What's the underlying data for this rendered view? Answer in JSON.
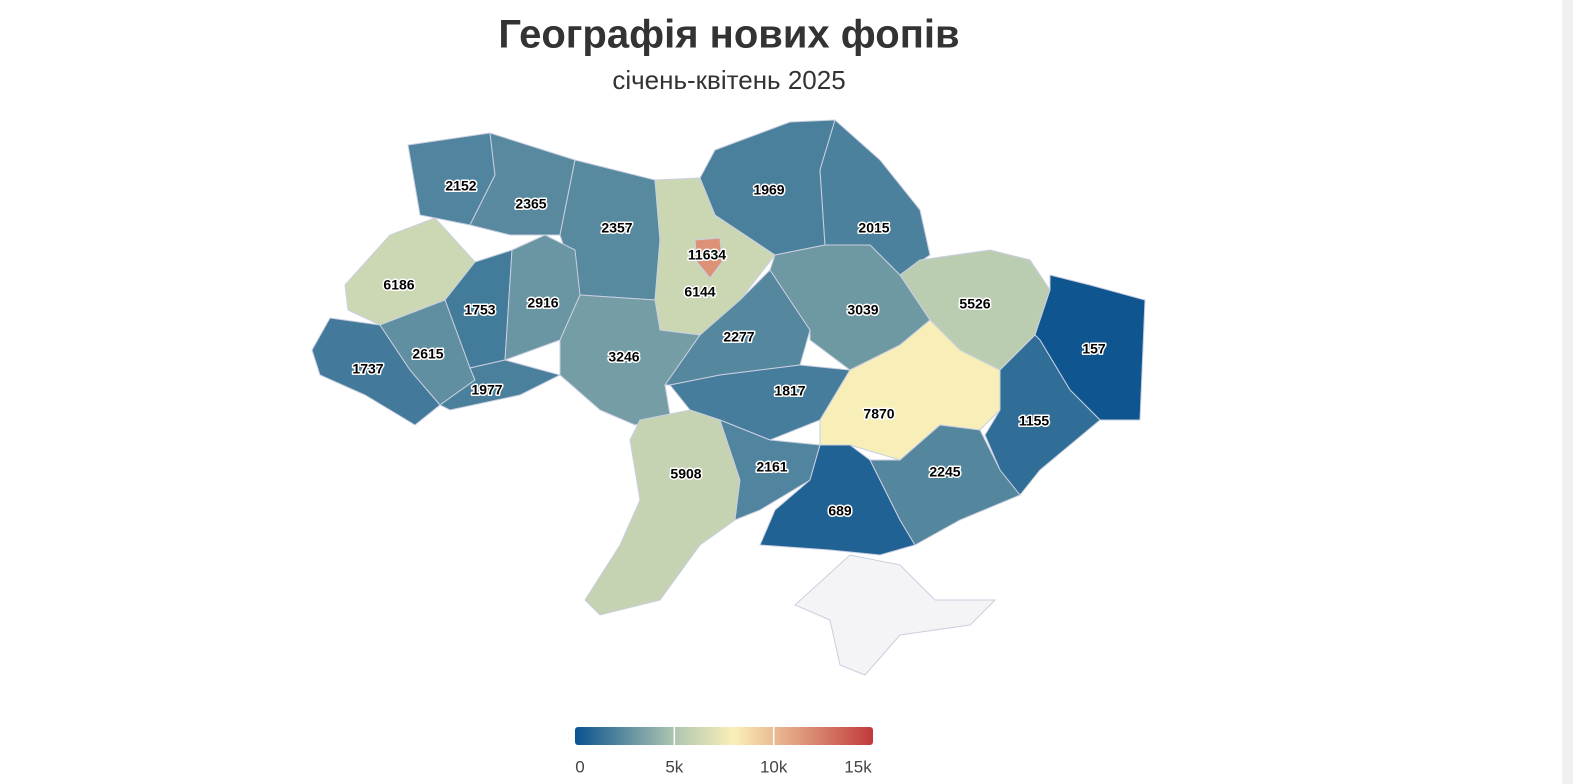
{
  "chart_data": {
    "type": "choropleth",
    "title": "Географія нових фопів",
    "subtitle": "січень-квітень 2025",
    "values": [
      2152,
      2365,
      2357,
      11634,
      6144,
      1969,
      2015,
      6186,
      1753,
      2916,
      1737,
      2615,
      1977,
      3246,
      2277,
      3039,
      5526,
      157,
      1817,
      7870,
      1155,
      5908,
      2161,
      689,
      2245
    ],
    "colorscale": [
      {
        "value": 0,
        "color": "#0a5290"
      },
      {
        "value": 5000,
        "color": "#aec6b0"
      },
      {
        "value": 8000,
        "color": "#faf0b8"
      },
      {
        "value": 15000,
        "color": "#c23a3a"
      }
    ],
    "clim": [
      0,
      15000
    ],
    "cticks": [
      0,
      {
        "value": 5000,
        "label": "5k"
      },
      {
        "value": 10000,
        "label": "10k"
      },
      {
        "value": 15000,
        "label": "15k"
      }
    ]
  }
}
